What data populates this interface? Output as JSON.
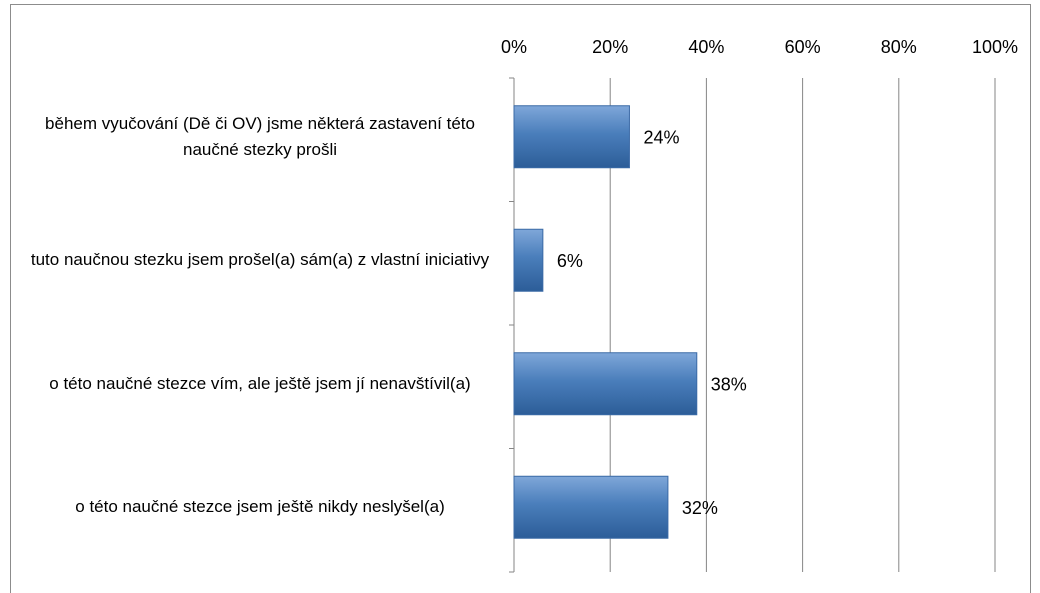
{
  "chart_data": {
    "type": "bar",
    "orientation": "horizontal",
    "categories": [
      "během vyučování (Dě či OV) jsme některá zastavení této naučné stezky prošli",
      "tuto naučnou stezku jsem prošel(a) sám(a) z vlastní iniciativy",
      "o této naučné stezce vím, ale ještě jsem jí nenavštívil(a)",
      "o této naučné stezce jsem ještě nikdy neslyšel(a)"
    ],
    "values": [
      24,
      6,
      38,
      32
    ],
    "value_labels": [
      "24%",
      "6%",
      "38%",
      "32%"
    ],
    "color": "#4f81bd",
    "xlim": [
      0,
      100
    ],
    "xticks": [
      {
        "value": 0,
        "label": "0%"
      },
      {
        "value": 20,
        "label": "20%"
      },
      {
        "value": 40,
        "label": "40%"
      },
      {
        "value": 60,
        "label": "60%"
      },
      {
        "value": 80,
        "label": "80%"
      },
      {
        "value": 100,
        "label": "100%"
      }
    ],
    "grid": true
  }
}
